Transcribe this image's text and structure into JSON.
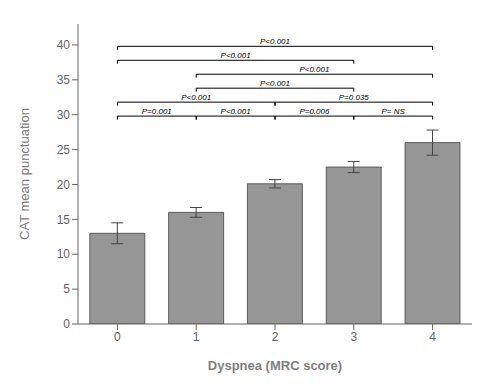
{
  "chart_data": {
    "type": "bar",
    "categories": [
      "0",
      "1",
      "2",
      "3",
      "4"
    ],
    "values": [
      13.0,
      16.0,
      20.1,
      22.5,
      26.0
    ],
    "errors": [
      1.5,
      0.7,
      0.6,
      0.8,
      1.8
    ],
    "color": "#969696",
    "xlabel": "Dyspnea (MRC score)",
    "ylabel": "CAT mean punctuation",
    "ylim": [
      0,
      43
    ],
    "yticks": [
      0,
      5,
      10,
      15,
      20,
      25,
      30,
      35,
      40
    ],
    "grid": false,
    "brackets": [
      {
        "from": "0",
        "to": "4",
        "y": 39.8,
        "label": "P<0.001"
      },
      {
        "from": "0",
        "to": "3",
        "y": 37.8,
        "label": "P<0.001"
      },
      {
        "from": "1",
        "to": "4",
        "y": 35.8,
        "label": "P<0.001"
      },
      {
        "from": "1",
        "to": "3",
        "y": 33.8,
        "label": "P<0.001"
      },
      {
        "from": "0",
        "to": "2",
        "y": 31.8,
        "label": "P<0.001"
      },
      {
        "from": "2",
        "to": "4",
        "y": 31.8,
        "label": "P=0.035"
      },
      {
        "from": "0",
        "to": "1",
        "y": 29.8,
        "label": "P=0.001"
      },
      {
        "from": "1",
        "to": "2",
        "y": 29.8,
        "label": "P<0.001"
      },
      {
        "from": "2",
        "to": "3",
        "y": 29.8,
        "label": "P=0.006"
      },
      {
        "from": "3",
        "to": "4",
        "y": 29.8,
        "label": "P= NS"
      }
    ]
  }
}
